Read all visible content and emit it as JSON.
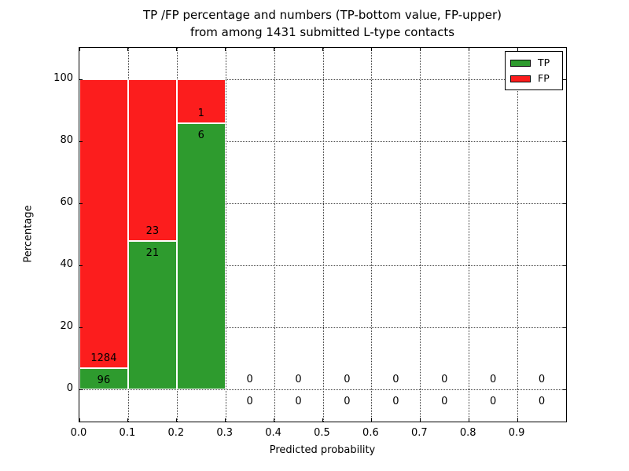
{
  "figure": {
    "title_line1": "TP /FP percentage and numbers (TP-bottom value, FP-upper)",
    "title_line2": "from among 1431 submitted L-type contacts"
  },
  "chart_data": {
    "type": "bar",
    "stacked": true,
    "title": "TP /FP percentage and numbers (TP-bottom value, FP-upper)\nfrom among 1431 submitted L-type contacts",
    "xlabel": "Predicted probability",
    "ylabel": "Percentage",
    "xlim": [
      0.0,
      1.0
    ],
    "ylim": [
      -10.6,
      110.1
    ],
    "xtick_values": [
      0.0,
      0.1,
      0.2,
      0.3,
      0.4,
      0.5,
      0.6,
      0.7,
      0.8,
      0.9
    ],
    "xtick_labels": [
      "0.0",
      "0.1",
      "0.2",
      "0.3",
      "0.4",
      "0.5",
      "0.6",
      "0.7",
      "0.8",
      "0.9"
    ],
    "ytick_values": [
      0,
      20,
      40,
      60,
      80,
      100
    ],
    "ytick_labels": [
      "0",
      "20",
      "40",
      "60",
      "80",
      "100"
    ],
    "grid": "dotted",
    "axisbelow": true,
    "total_contacts": 1431,
    "bin_width": 0.1,
    "legend": {
      "position": "upper right",
      "entries": [
        {
          "label": "TP",
          "color": "#2e9b2e"
        },
        {
          "label": "FP",
          "color": "#fc1d1d"
        }
      ]
    },
    "bins": [
      {
        "x0": 0.0,
        "x1": 0.1,
        "tp": 96,
        "fp": 1284,
        "tp_pct": 6.96,
        "fp_pct": 93.04
      },
      {
        "x0": 0.1,
        "x1": 0.2,
        "tp": 21,
        "fp": 23,
        "tp_pct": 47.73,
        "fp_pct": 52.27
      },
      {
        "x0": 0.2,
        "x1": 0.3,
        "tp": 6,
        "fp": 1,
        "tp_pct": 85.71,
        "fp_pct": 14.29
      },
      {
        "x0": 0.3,
        "x1": 0.4,
        "tp": 0,
        "fp": 0,
        "tp_pct": 0,
        "fp_pct": 0
      },
      {
        "x0": 0.4,
        "x1": 0.5,
        "tp": 0,
        "fp": 0,
        "tp_pct": 0,
        "fp_pct": 0
      },
      {
        "x0": 0.5,
        "x1": 0.6,
        "tp": 0,
        "fp": 0,
        "tp_pct": 0,
        "fp_pct": 0
      },
      {
        "x0": 0.6,
        "x1": 0.7,
        "tp": 0,
        "fp": 0,
        "tp_pct": 0,
        "fp_pct": 0
      },
      {
        "x0": 0.7,
        "x1": 0.8,
        "tp": 0,
        "fp": 0,
        "tp_pct": 0,
        "fp_pct": 0
      },
      {
        "x0": 0.8,
        "x1": 0.9,
        "tp": 0,
        "fp": 0,
        "tp_pct": 0,
        "fp_pct": 0
      },
      {
        "x0": 0.9,
        "x1": 1.0,
        "tp": 0,
        "fp": 0,
        "tp_pct": 0,
        "fp_pct": 0
      }
    ]
  },
  "colors": {
    "tp_green": "#2e9b2e",
    "fp_red": "#fc1d1d",
    "bar_edge": "#ffffff",
    "grid": "#000000",
    "text": "#000000",
    "background": "#ffffff"
  }
}
